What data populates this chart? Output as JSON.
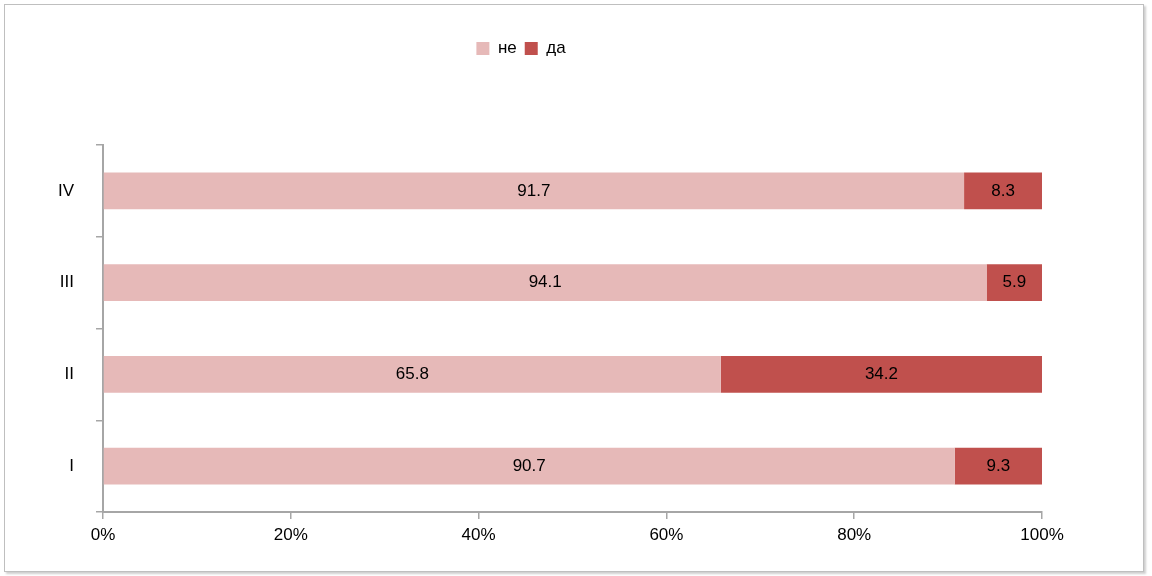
{
  "chart_data": {
    "type": "bar",
    "orientation": "horizontal",
    "stacked": true,
    "categories": [
      "IV",
      "III",
      "II",
      "I"
    ],
    "series": [
      {
        "name": "не",
        "color": "#e6b9b8",
        "values": [
          91.7,
          94.1,
          65.8,
          90.7
        ]
      },
      {
        "name": "да",
        "color": "#c0504d",
        "values": [
          8.3,
          5.9,
          34.2,
          9.3
        ]
      }
    ],
    "xlim": [
      0,
      100
    ],
    "xticks": [
      {
        "value": 0,
        "label": "0%"
      },
      {
        "value": 20,
        "label": "20%"
      },
      {
        "value": 40,
        "label": "40%"
      },
      {
        "value": 60,
        "label": "60%"
      },
      {
        "value": 80,
        "label": "80%"
      },
      {
        "value": 100,
        "label": "100%"
      }
    ],
    "legend": "top",
    "data_labels": true,
    "grid": false
  }
}
